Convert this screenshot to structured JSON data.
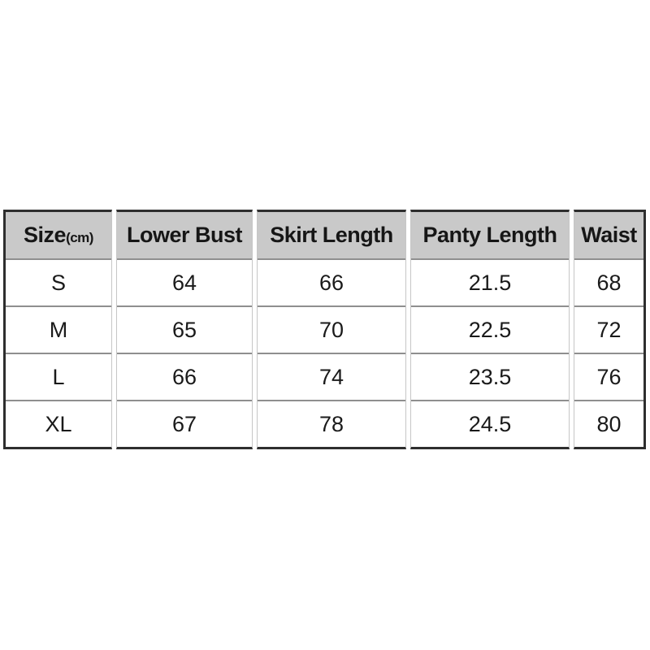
{
  "table": {
    "columns": [
      {
        "header": "Size",
        "header_unit": "(cm)",
        "values": [
          "S",
          "M",
          "L",
          "XL"
        ]
      },
      {
        "header": "Lower Bust",
        "values": [
          "64",
          "65",
          "66",
          "67"
        ]
      },
      {
        "header": "Skirt Length",
        "values": [
          "66",
          "70",
          "74",
          "78"
        ]
      },
      {
        "header": "Panty Length",
        "values": [
          "21.5",
          "22.5",
          "23.5",
          "24.5"
        ]
      },
      {
        "header": "Waist",
        "values": [
          "68",
          "72",
          "76",
          "80"
        ]
      }
    ]
  },
  "chart_data": {
    "type": "table",
    "title": "",
    "columns": [
      "Size(cm)",
      "Lower Bust",
      "Skirt Length",
      "Panty Length",
      "Waist"
    ],
    "rows": [
      [
        "S",
        64,
        66,
        21.5,
        68
      ],
      [
        "M",
        65,
        70,
        22.5,
        72
      ],
      [
        "L",
        66,
        74,
        23.5,
        76
      ],
      [
        "XL",
        67,
        78,
        24.5,
        80
      ]
    ]
  },
  "colors": {
    "header_background": "#c9c9c9",
    "outer_border": "#2e2e2e",
    "row_separator": "#8f8f8f",
    "column_edge": "#c6c6c6",
    "text": "#1a1a1a",
    "page_background": "#ffffff"
  }
}
